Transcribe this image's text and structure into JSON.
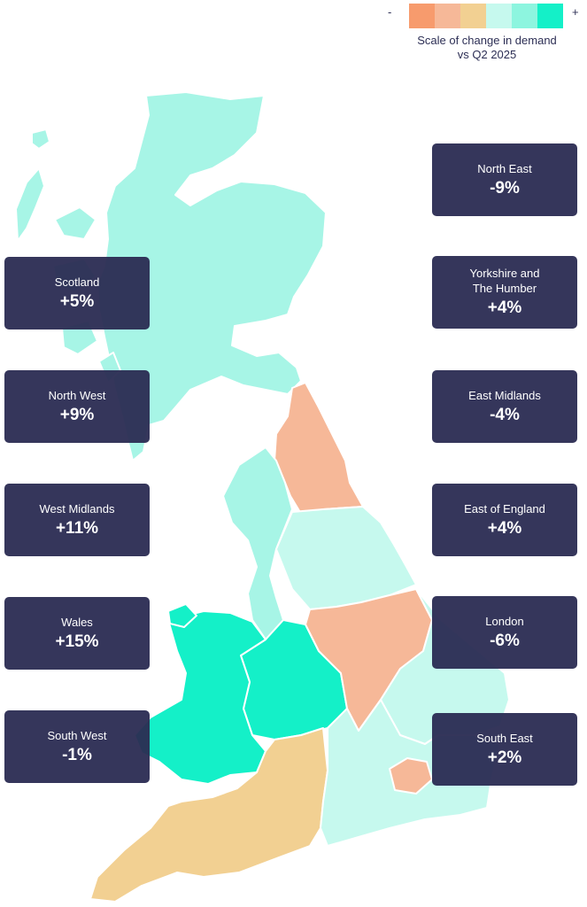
{
  "legend": {
    "minus": "-",
    "plus": "+",
    "caption": "Scale of change in demand vs Q2 2025",
    "scale_colors": [
      "#f79b6d",
      "#f6b898",
      "#f2d092",
      "#c6f9ee",
      "#8df5df",
      "#14f0c8"
    ]
  },
  "regions": {
    "scotland": {
      "name": "Scotland",
      "value": "+5%",
      "color": "#a7f5e6"
    },
    "north_west": {
      "name": "North West",
      "value": "+9%",
      "color": "#a7f5e6"
    },
    "west_midlands": {
      "name": "West Midlands",
      "value": "+11%",
      "color": "#14f0c8"
    },
    "wales": {
      "name": "Wales",
      "value": "+15%",
      "color": "#14f0c8"
    },
    "south_west": {
      "name": "South West",
      "value": "-1%",
      "color": "#f2d092"
    },
    "north_east": {
      "name": "North East",
      "value": "-9%",
      "color": "#f6b898"
    },
    "yorkshire": {
      "name": "Yorkshire and\nThe Humber",
      "value": "+4%",
      "color": "#c6f9ee"
    },
    "east_midlands": {
      "name": "East Midlands",
      "value": "-4%",
      "color": "#f6b898"
    },
    "east_of_england": {
      "name": "East of England",
      "value": "+4%",
      "color": "#c6f9ee"
    },
    "london": {
      "name": "London",
      "value": "-6%",
      "color": "#f6b898"
    },
    "south_east": {
      "name": "South East",
      "value": "+2%",
      "color": "#c6f9ee"
    }
  }
}
